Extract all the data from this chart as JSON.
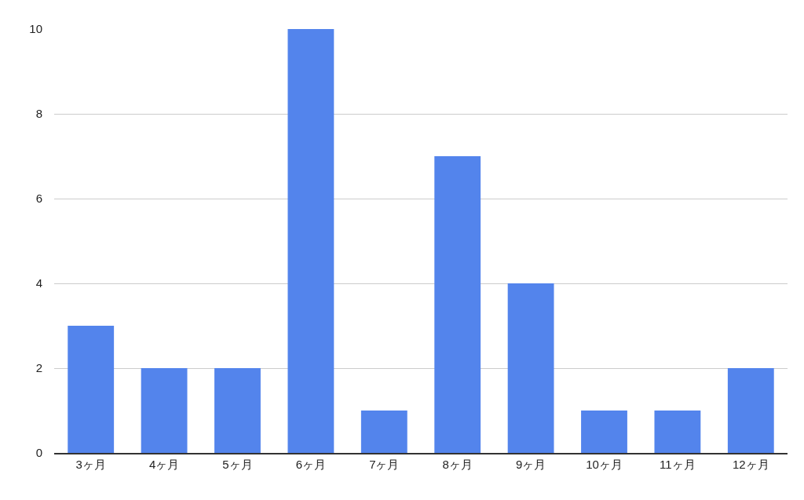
{
  "chart_data": {
    "type": "bar",
    "categories": [
      "3ヶ月",
      "4ヶ月",
      "5ヶ月",
      "6ヶ月",
      "7ヶ月",
      "8ヶ月",
      "9ヶ月",
      "10ヶ月",
      "11ヶ月",
      "12ヶ月"
    ],
    "values": [
      3,
      2,
      2,
      10,
      1,
      7,
      4,
      1,
      1,
      2
    ],
    "color": "#5384ec",
    "ylim": [
      0,
      10
    ],
    "yticks": [
      0,
      2,
      4,
      6,
      8,
      10
    ],
    "grid": "y",
    "legend": false
  }
}
